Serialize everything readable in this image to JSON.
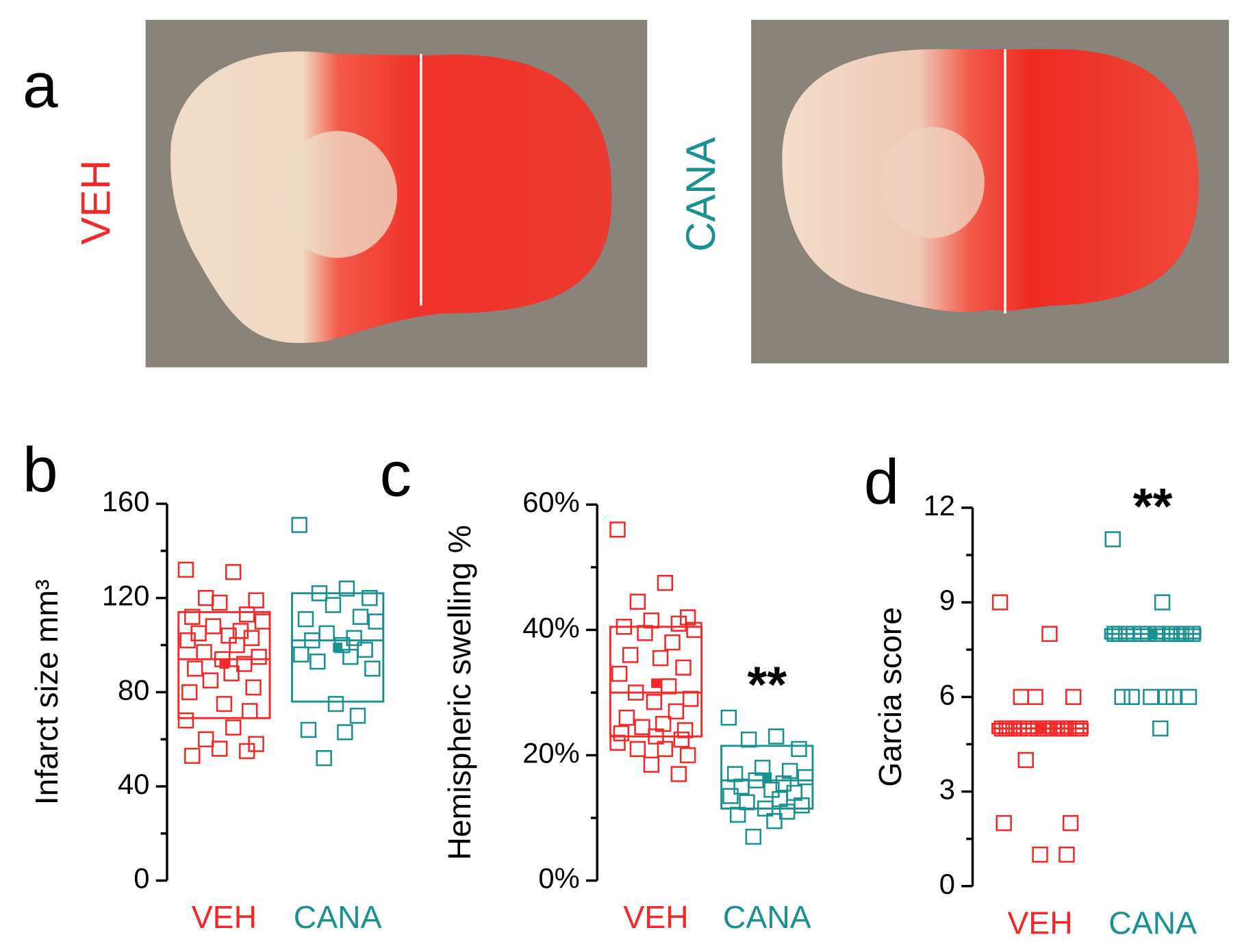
{
  "panel_a": {
    "label": "a",
    "images": [
      "VEH",
      "CANA"
    ]
  },
  "chart_data": [
    {
      "type": "box",
      "panel": "b",
      "ylabel": "Infarct size mm³",
      "ylim": [
        0,
        160
      ],
      "yticks": [
        0,
        40,
        80,
        120,
        160
      ],
      "minor_yticks": [
        20,
        60,
        100,
        140
      ],
      "series": [
        {
          "name": "VEH",
          "color": "#f52828",
          "values": [
            132,
            131,
            120,
            119,
            118,
            113,
            112,
            110,
            108,
            106,
            105,
            104,
            103,
            102,
            100,
            97,
            95,
            94,
            92,
            90,
            88,
            85,
            82,
            80,
            75,
            72,
            68,
            65,
            60,
            58,
            56,
            55,
            53
          ],
          "box": {
            "low": 69,
            "median": 94,
            "high": 114
          },
          "mean": 92
        },
        {
          "name": "CANA",
          "color": "#1a9090",
          "values": [
            151,
            124,
            122,
            120,
            117,
            112,
            111,
            110,
            105,
            103,
            102,
            100,
            98,
            96,
            95,
            93,
            90,
            75,
            70,
            64,
            63,
            52
          ],
          "box": {
            "low": 76,
            "median": 102,
            "high": 122
          },
          "mean": 99
        }
      ]
    },
    {
      "type": "box",
      "panel": "c",
      "ylabel": "Hemispheric swelling %",
      "ylim": [
        0,
        60
      ],
      "yticks": [
        {
          "value": 0,
          "label": "0%"
        },
        {
          "value": 20,
          "label": "20%"
        },
        {
          "value": 40,
          "label": "40%"
        },
        {
          "value": 60,
          "label": "60%"
        }
      ],
      "minor_yticks": [
        10,
        30,
        50
      ],
      "annotation": "**",
      "series": [
        {
          "name": "VEH",
          "color": "#f52828",
          "values": [
            56,
            47.5,
            44.5,
            42,
            41.5,
            41,
            40.5,
            40,
            39.5,
            38,
            36,
            35.5,
            34,
            33,
            31,
            30,
            29,
            28.5,
            27,
            26,
            25,
            24.5,
            24,
            23.5,
            23,
            22.5,
            22,
            21,
            21,
            20,
            18.5,
            17
          ],
          "box": {
            "low": 23,
            "median": 30,
            "high": 40.5
          },
          "mean": 31.5
        },
        {
          "name": "CANA",
          "color": "#1a9090",
          "values": [
            26,
            23,
            22.5,
            21,
            18,
            17.5,
            17,
            16.5,
            16,
            15.5,
            15,
            14.5,
            14,
            13.5,
            13,
            12.5,
            12,
            11.5,
            11,
            10.5,
            9.5,
            7
          ],
          "box": {
            "low": 11.5,
            "median": 16,
            "high": 21.5
          },
          "mean": 16.5
        }
      ]
    },
    {
      "type": "box",
      "panel": "d",
      "ylabel": "Garcia score",
      "ylim": [
        0,
        12
      ],
      "yticks": [
        0,
        3,
        6,
        9,
        12
      ],
      "minor_yticks": [
        1.5,
        4.5,
        7.5,
        10.5
      ],
      "annotation": "**",
      "series": [
        {
          "name": "VEH",
          "color": "#f52828",
          "values": [
            9,
            8,
            6,
            6,
            6,
            5,
            5,
            5,
            5,
            5,
            5,
            5,
            5,
            5,
            5,
            5,
            5,
            5,
            5,
            5,
            5,
            4,
            2,
            2,
            1,
            1
          ],
          "box": {
            "low": 4.85,
            "median": 5,
            "high": 5.15
          },
          "mean": 5
        },
        {
          "name": "CANA",
          "color": "#1a9090",
          "values": [
            11,
            9,
            8,
            8,
            8,
            8,
            8,
            8,
            8,
            8,
            8,
            8,
            8,
            8,
            6,
            6,
            6,
            6,
            6,
            6,
            5
          ],
          "box": {
            "low": 7.85,
            "median": 8,
            "high": 8.15
          },
          "mean": 8
        }
      ]
    }
  ]
}
